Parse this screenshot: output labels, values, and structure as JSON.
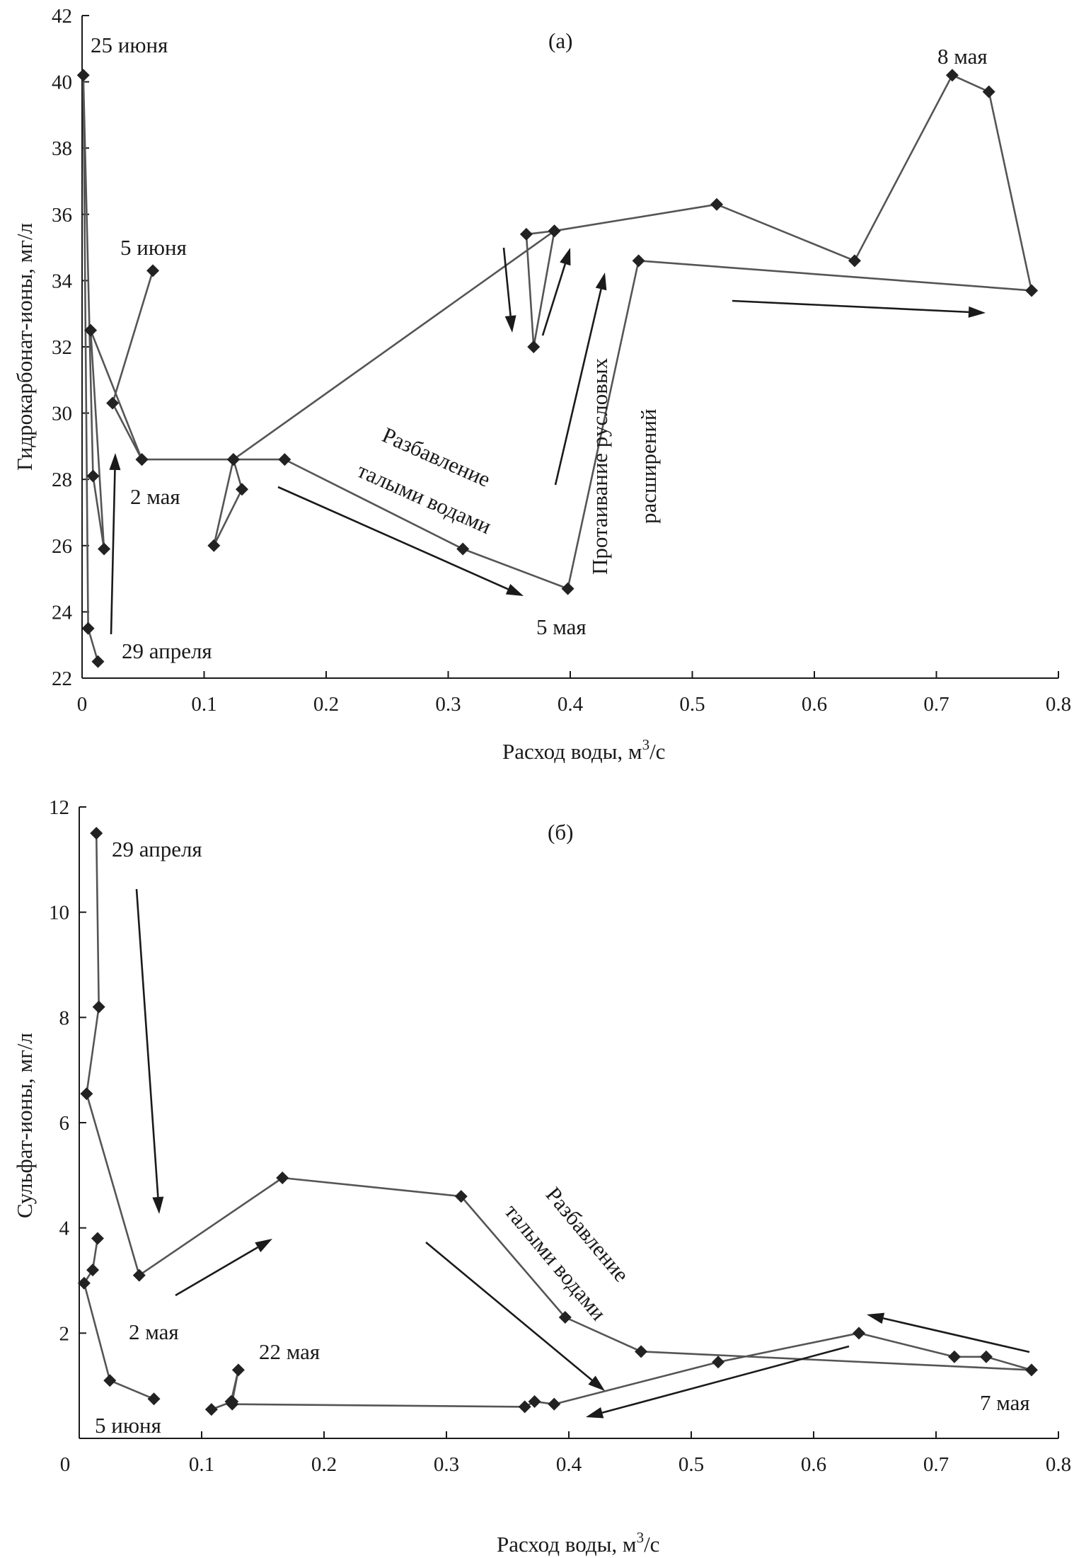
{
  "chart_data": [
    {
      "type": "line",
      "panel_label": "(а)",
      "xlabel": "Расход воды, м",
      "xlabel_sup": "3",
      "xlabel_tail": "/с",
      "ylabel": "Гидрокарбонат-ионы, мг/л",
      "xlim": [
        0,
        0.8
      ],
      "ylim": [
        22,
        42
      ],
      "x_ticks": [
        "0",
        "0.1",
        "0.2",
        "0.3",
        "0.4",
        "0.5",
        "0.6",
        "0.7",
        "0.8"
      ],
      "y_ticks": [
        "22",
        "24",
        "26",
        "28",
        "30",
        "32",
        "34",
        "36",
        "38",
        "40",
        "42"
      ],
      "grid": false,
      "series": [
        {
          "points": [
            [
              0.013,
              22.5
            ],
            [
              0.005,
              23.5
            ],
            [
              0.001,
              40.2
            ],
            [
              0.009,
              28.1
            ],
            [
              0.018,
              25.9
            ],
            [
              0.007,
              32.5
            ],
            [
              0.049,
              28.6
            ],
            [
              0.124,
              28.6
            ],
            [
              0.131,
              27.7
            ],
            [
              0.108,
              26.0
            ],
            [
              0.124,
              28.6
            ],
            [
              0.166,
              28.6
            ],
            [
              0.312,
              25.9
            ],
            [
              0.398,
              24.7
            ],
            [
              0.456,
              34.6
            ],
            [
              0.778,
              33.7
            ],
            [
              0.743,
              39.7
            ],
            [
              0.713,
              40.2
            ],
            [
              0.633,
              34.6
            ],
            [
              0.52,
              36.3
            ],
            [
              0.387,
              35.5
            ],
            [
              0.37,
              32.0
            ],
            [
              0.364,
              35.4
            ],
            [
              0.387,
              35.5
            ],
            [
              0.124,
              28.6
            ],
            [
              0.049,
              28.6
            ],
            [
              0.025,
              30.3
            ],
            [
              0.058,
              34.3
            ]
          ]
        }
      ],
      "annotations": [
        "25 июня",
        "8 мая",
        "5 июня",
        "2 мая",
        "29 апреля",
        "5 мая",
        "Разбавление",
        "талыми водами",
        "Протаивание русловых",
        "расширений"
      ]
    },
    {
      "type": "line",
      "panel_label": "(б)",
      "xlabel": "Расход воды, м",
      "xlabel_sup": "3",
      "xlabel_tail": "/с",
      "ylabel": "Сульфат-ионы, мг/л",
      "xlim": [
        0,
        0.8
      ],
      "ylim": [
        0,
        12
      ],
      "x_ticks": [
        "0",
        "0.1",
        "0.2",
        "0.3",
        "0.4",
        "0.5",
        "0.6",
        "0.7",
        "0.8"
      ],
      "y_ticks": [
        "2",
        "4",
        "6",
        "8",
        "10",
        "12"
      ],
      "x_zero_label": "0",
      "grid": false,
      "series": [
        {
          "points": [
            [
              0.014,
              11.5
            ],
            [
              0.016,
              8.2
            ],
            [
              0.006,
              6.55
            ],
            [
              0.049,
              3.1
            ],
            [
              0.166,
              4.95
            ],
            [
              0.312,
              4.6
            ],
            [
              0.397,
              2.3
            ],
            [
              0.459,
              1.65
            ],
            [
              0.778,
              1.3
            ],
            [
              0.741,
              1.55
            ],
            [
              0.715,
              1.55
            ],
            [
              0.637,
              2.0
            ],
            [
              0.522,
              1.45
            ],
            [
              0.388,
              0.65
            ],
            [
              0.372,
              0.7
            ],
            [
              0.364,
              0.6
            ],
            [
              0.125,
              0.65
            ],
            [
              0.124,
              0.7
            ],
            [
              0.13,
              1.3
            ],
            [
              0.125,
              0.7
            ],
            [
              0.108,
              0.55
            ]
          ]
        },
        {
          "points": [
            [
              0.015,
              3.8
            ],
            [
              0.011,
              3.2
            ],
            [
              0.004,
              2.95
            ],
            [
              0.025,
              1.1
            ],
            [
              0.061,
              0.75
            ]
          ]
        }
      ],
      "annotations": [
        "29 апреля",
        "2 мая",
        "22 мая",
        "5 июня",
        "7 мая",
        "Разбавление",
        "талыми водами"
      ]
    }
  ]
}
